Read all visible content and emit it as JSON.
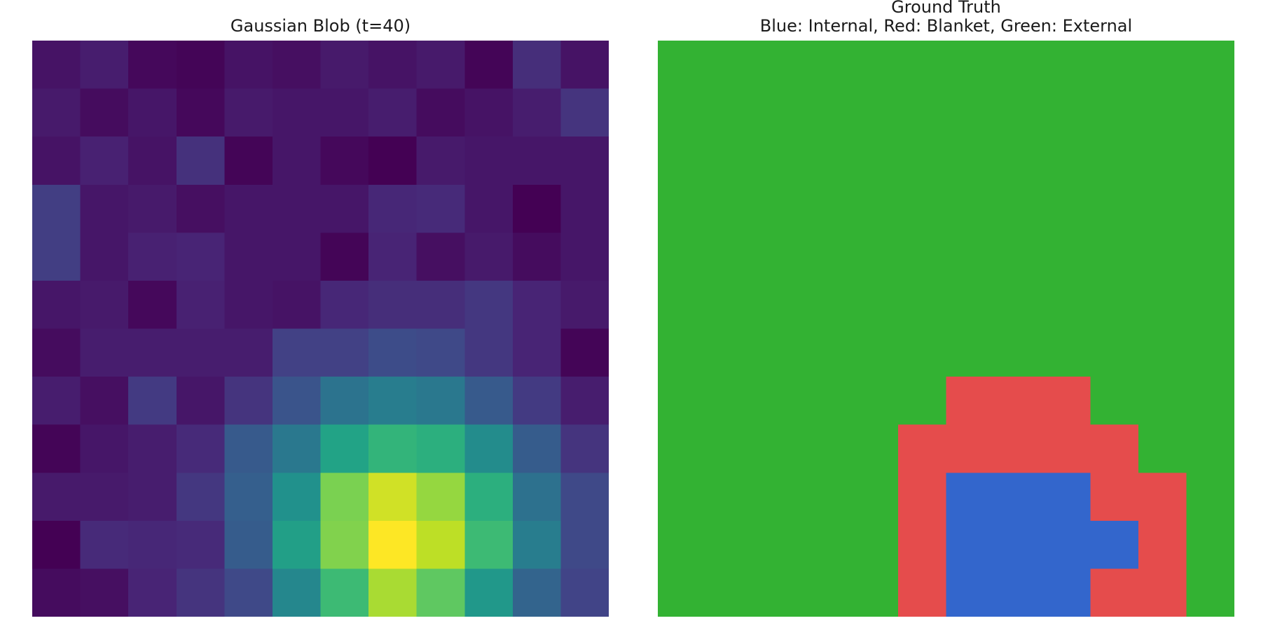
{
  "chart_data": [
    {
      "type": "heatmap",
      "title": "Gaussian Blob (t=40)",
      "colormap": "viridis",
      "value_range": [
        0,
        1
      ],
      "axes": "off",
      "rows": 12,
      "cols": 12,
      "values": [
        [
          0.05,
          0.08,
          0.02,
          0.01,
          0.05,
          0.04,
          0.07,
          0.05,
          0.07,
          0.01,
          0.13,
          0.05
        ],
        [
          0.07,
          0.03,
          0.06,
          0.02,
          0.07,
          0.06,
          0.06,
          0.08,
          0.03,
          0.05,
          0.08,
          0.15
        ],
        [
          0.05,
          0.09,
          0.05,
          0.14,
          0.01,
          0.06,
          0.02,
          0.0,
          0.07,
          0.06,
          0.06,
          0.06
        ],
        [
          0.18,
          0.06,
          0.07,
          0.04,
          0.06,
          0.06,
          0.06,
          0.11,
          0.12,
          0.06,
          0.0,
          0.06
        ],
        [
          0.18,
          0.06,
          0.09,
          0.1,
          0.06,
          0.06,
          0.01,
          0.1,
          0.04,
          0.07,
          0.03,
          0.06
        ],
        [
          0.06,
          0.07,
          0.02,
          0.09,
          0.06,
          0.05,
          0.11,
          0.13,
          0.13,
          0.16,
          0.1,
          0.07
        ],
        [
          0.03,
          0.08,
          0.08,
          0.08,
          0.08,
          0.19,
          0.19,
          0.23,
          0.22,
          0.16,
          0.1,
          0.01
        ],
        [
          0.08,
          0.04,
          0.17,
          0.06,
          0.15,
          0.26,
          0.38,
          0.42,
          0.4,
          0.28,
          0.17,
          0.08
        ],
        [
          0.01,
          0.06,
          0.08,
          0.12,
          0.28,
          0.4,
          0.58,
          0.65,
          0.63,
          0.48,
          0.29,
          0.15
        ],
        [
          0.07,
          0.07,
          0.08,
          0.16,
          0.3,
          0.5,
          0.8,
          0.93,
          0.84,
          0.63,
          0.37,
          0.22
        ],
        [
          0.0,
          0.12,
          0.11,
          0.12,
          0.29,
          0.56,
          0.81,
          1.0,
          0.9,
          0.68,
          0.42,
          0.22
        ],
        [
          0.03,
          0.04,
          0.1,
          0.15,
          0.22,
          0.46,
          0.68,
          0.87,
          0.75,
          0.53,
          0.32,
          0.2
        ]
      ]
    },
    {
      "type": "heatmap",
      "title_lines": [
        "Ground Truth",
        "Blue: Internal, Red: Blanket, Green: External"
      ],
      "axes": "off",
      "rows": 12,
      "cols": 12,
      "category_colors": {
        "internal": "#3366cc",
        "blanket": "#e54c4c",
        "external": "#33b233"
      },
      "labels": [
        [
          "external",
          "external",
          "external",
          "external",
          "external",
          "external",
          "external",
          "external",
          "external",
          "external",
          "external",
          "external"
        ],
        [
          "external",
          "external",
          "external",
          "external",
          "external",
          "external",
          "external",
          "external",
          "external",
          "external",
          "external",
          "external"
        ],
        [
          "external",
          "external",
          "external",
          "external",
          "external",
          "external",
          "external",
          "external",
          "external",
          "external",
          "external",
          "external"
        ],
        [
          "external",
          "external",
          "external",
          "external",
          "external",
          "external",
          "external",
          "external",
          "external",
          "external",
          "external",
          "external"
        ],
        [
          "external",
          "external",
          "external",
          "external",
          "external",
          "external",
          "external",
          "external",
          "external",
          "external",
          "external",
          "external"
        ],
        [
          "external",
          "external",
          "external",
          "external",
          "external",
          "external",
          "external",
          "external",
          "external",
          "external",
          "external",
          "external"
        ],
        [
          "external",
          "external",
          "external",
          "external",
          "external",
          "external",
          "external",
          "external",
          "external",
          "external",
          "external",
          "external"
        ],
        [
          "external",
          "external",
          "external",
          "external",
          "external",
          "external",
          "blanket",
          "blanket",
          "blanket",
          "external",
          "external",
          "external"
        ],
        [
          "external",
          "external",
          "external",
          "external",
          "external",
          "blanket",
          "blanket",
          "blanket",
          "blanket",
          "blanket",
          "external",
          "external"
        ],
        [
          "external",
          "external",
          "external",
          "external",
          "external",
          "blanket",
          "internal",
          "internal",
          "internal",
          "blanket",
          "blanket",
          "external"
        ],
        [
          "external",
          "external",
          "external",
          "external",
          "external",
          "blanket",
          "internal",
          "internal",
          "internal",
          "internal",
          "blanket",
          "external"
        ],
        [
          "external",
          "external",
          "external",
          "external",
          "external",
          "blanket",
          "internal",
          "internal",
          "internal",
          "blanket",
          "blanket",
          "external"
        ]
      ]
    }
  ]
}
